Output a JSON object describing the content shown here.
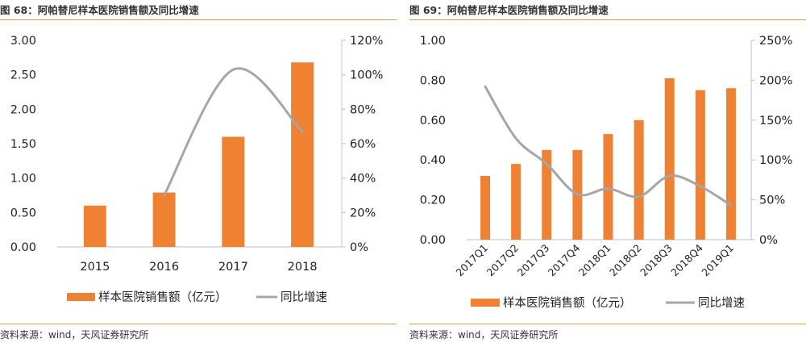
{
  "figures": [
    {
      "title": "图 68：阿帕替尼样本医院销售额及同比增速",
      "source": "资料来源：wind，天风证券研究所"
    },
    {
      "title": "图 69：阿帕替尼样本医院销售额及同比增速",
      "source": "资料来源：wind，天风证券研究所"
    }
  ],
  "colors": {
    "bar": "#ee8232",
    "line": "#a6a6a6",
    "accent_rule": "#d9a23c",
    "axis": "#bfbfbf"
  },
  "chart_data": [
    {
      "type": "bar",
      "title": "",
      "categories": [
        "2015",
        "2016",
        "2017",
        "2018"
      ],
      "series": [
        {
          "name": "样本医院销售额（亿元）",
          "kind": "bar",
          "axis": "left",
          "values": [
            0.6,
            0.79,
            1.6,
            2.68
          ]
        },
        {
          "name": "同比增速",
          "kind": "line",
          "axis": "right",
          "values": [
            null,
            30,
            103,
            67
          ]
        }
      ],
      "ylim_left": [
        0,
        3
      ],
      "yticks_left": [
        "0.00",
        "0.50",
        "1.00",
        "1.50",
        "2.00",
        "2.50",
        "3.00"
      ],
      "ylim_right": [
        0,
        120
      ],
      "yticks_right": [
        "0%",
        "20%",
        "40%",
        "60%",
        "80%",
        "100%",
        "120%"
      ],
      "grid": false,
      "legend": "bottom"
    },
    {
      "type": "bar",
      "title": "",
      "categories": [
        "2017Q1",
        "2017Q2",
        "2017Q3",
        "2017Q4",
        "2018Q1",
        "2018Q2",
        "2018Q3",
        "2018Q4",
        "2019Q1"
      ],
      "series": [
        {
          "name": "样本医院销售额（亿元）",
          "kind": "bar",
          "axis": "left",
          "values": [
            0.32,
            0.38,
            0.45,
            0.45,
            0.53,
            0.6,
            0.81,
            0.75,
            0.76
          ]
        },
        {
          "name": "同比增速",
          "kind": "line",
          "axis": "right",
          "values": [
            192,
            127,
            95,
            57,
            64,
            54,
            80,
            67,
            43
          ]
        }
      ],
      "ylim_left": [
        0,
        1
      ],
      "yticks_left": [
        "0.00",
        "0.20",
        "0.40",
        "0.60",
        "0.80",
        "1.00"
      ],
      "ylim_right": [
        0,
        250
      ],
      "yticks_right": [
        "0%",
        "50%",
        "100%",
        "150%",
        "200%",
        "250%"
      ],
      "grid": false,
      "legend": "bottom"
    }
  ]
}
